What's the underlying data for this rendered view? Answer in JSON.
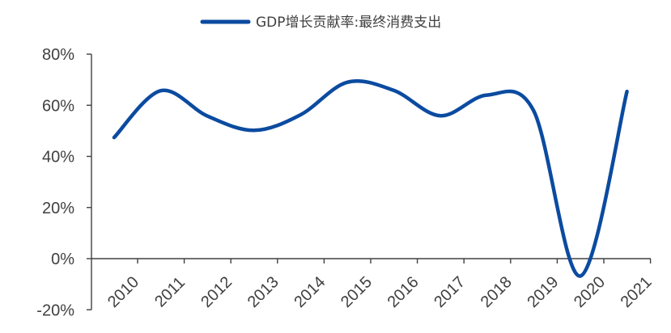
{
  "chart_data": {
    "type": "line",
    "title": "",
    "xlabel": "",
    "ylabel": "",
    "categories": [
      "2010",
      "2011",
      "2012",
      "2013",
      "2014",
      "2015",
      "2016",
      "2017",
      "2018",
      "2019",
      "2020",
      "2021"
    ],
    "series": [
      {
        "name": "GDP增长贡献率:最终消费支出",
        "values": [
          47.4,
          65.7,
          55.8,
          50.2,
          56.3,
          69.0,
          65.8,
          55.9,
          64.0,
          57.8,
          -6.8,
          65.4
        ],
        "color": "#0B4BA0"
      }
    ],
    "ylim": [
      -20,
      80
    ],
    "yticks": [
      "-20%",
      "0%",
      "20%",
      "40%",
      "60%",
      "80%"
    ],
    "ytick_values": [
      -20,
      0,
      20,
      40,
      60,
      80
    ],
    "legend_position": "top-center",
    "grid": false
  }
}
